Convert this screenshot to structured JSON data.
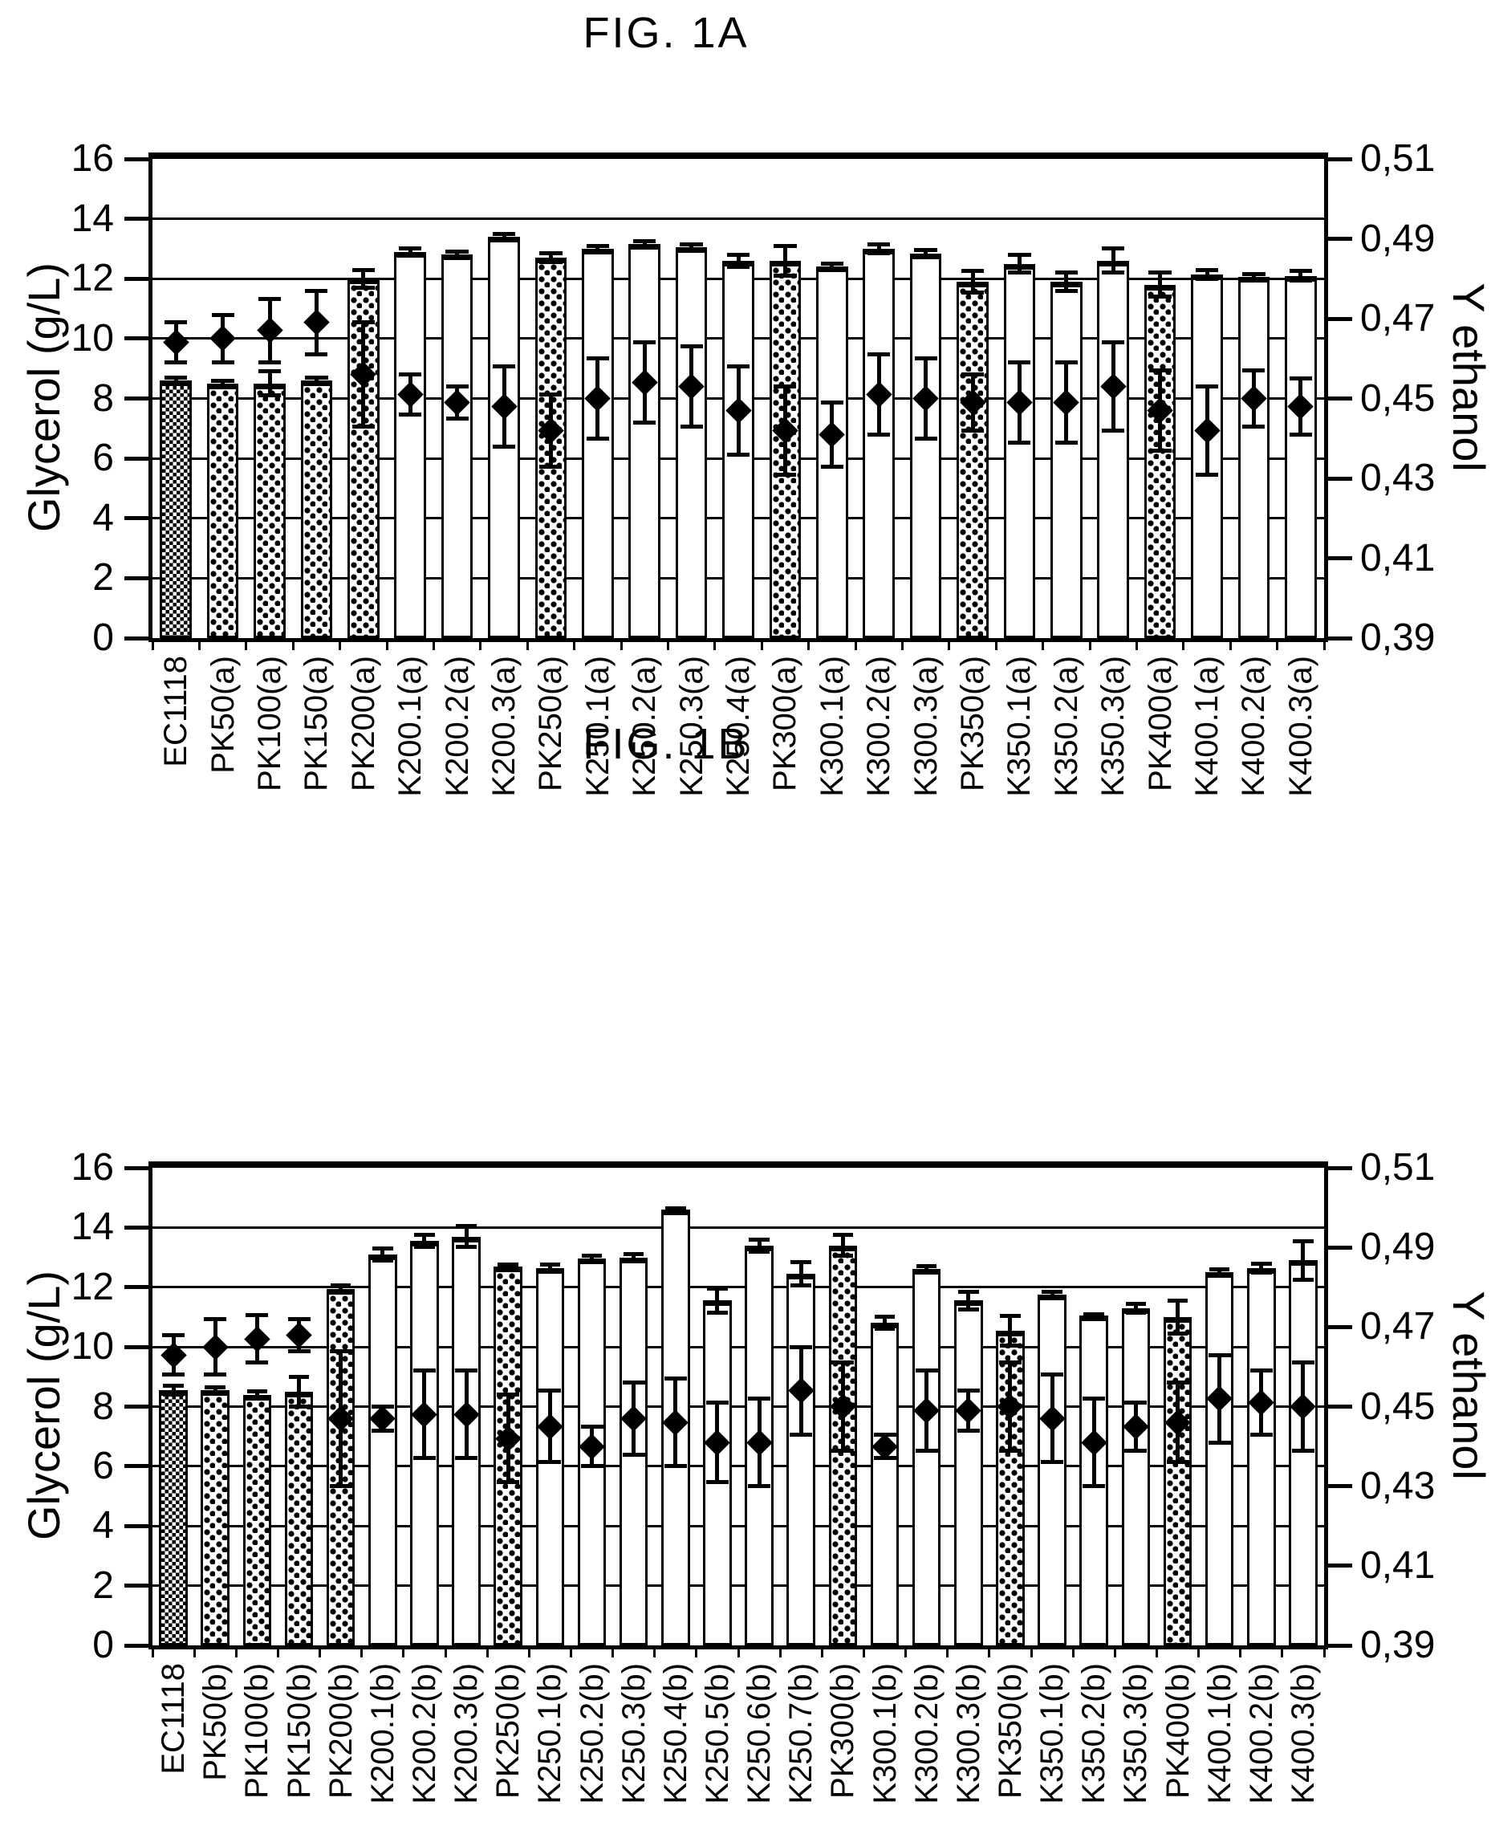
{
  "page": {
    "background": "#ffffff",
    "ink": "#000000"
  },
  "chart_data": [
    {
      "id": "fig1a",
      "type": "bar",
      "title": "FIG. 1A",
      "ylabel_left": "Glycerol (g/L)",
      "ylabel_right": "Y ethanol",
      "ylim_left": [
        0,
        16
      ],
      "ylim_right": [
        0.39,
        0.51
      ],
      "yticks_left": [
        16,
        14,
        12,
        10,
        8,
        6,
        4,
        2,
        0
      ],
      "yticks_right": [
        "0,51",
        "0,49",
        "0,47",
        "0,45",
        "0,43",
        "0,41",
        "0,39"
      ],
      "grid": "horizontal every 2 g/L",
      "legend": null,
      "series": [
        {
          "name": "Glycerol (g/L)",
          "marker": "bar",
          "axis": "left"
        },
        {
          "name": "Y ethanol",
          "marker": "diamond",
          "axis": "right"
        }
      ],
      "categories": [
        "EC1118",
        "PK50(a)",
        "PK100(a)",
        "PK150(a)",
        "PK200(a)",
        "K200.1(a)",
        "K200.2(a)",
        "K200.3(a)",
        "PK250(a)",
        "K250.1(a)",
        "K250.2(a)",
        "K250.3(a)",
        "K250.4(a)",
        "PK300(a)",
        "K300.1(a)",
        "K300.2(a)",
        "K300.3(a)",
        "PK350(a)",
        "K350.1(a)",
        "K350.2(a)",
        "K350.3(a)",
        "PK400(a)",
        "K400.1(a)",
        "K400.2(a)",
        "K400.3(a)"
      ],
      "bars": {
        "values": [
          8.6,
          8.5,
          8.5,
          8.6,
          12.0,
          12.9,
          12.8,
          13.4,
          12.7,
          13.0,
          13.15,
          13.05,
          12.6,
          12.6,
          12.4,
          13.0,
          12.85,
          11.9,
          12.5,
          11.9,
          12.6,
          11.8,
          12.15,
          12.05,
          12.1
        ],
        "errors": [
          0.1,
          0.1,
          0.4,
          0.1,
          0.3,
          0.1,
          0.1,
          0.1,
          0.15,
          0.1,
          0.1,
          0.1,
          0.2,
          0.5,
          0.1,
          0.15,
          0.1,
          0.35,
          0.3,
          0.3,
          0.4,
          0.4,
          0.15,
          0.1,
          0.15
        ],
        "patterns": [
          "checker",
          "dots",
          "dots",
          "dots",
          "dots",
          "plain",
          "plain",
          "plain",
          "dots",
          "plain",
          "plain",
          "plain",
          "plain",
          "dots",
          "plain",
          "plain",
          "plain",
          "dots",
          "plain",
          "plain",
          "plain",
          "dots",
          "plain",
          "plain",
          "plain"
        ]
      },
      "diamonds": {
        "values": [
          0.464,
          0.465,
          0.467,
          0.469,
          0.456,
          0.451,
          0.449,
          0.448,
          0.442,
          0.45,
          0.454,
          0.453,
          0.447,
          0.442,
          0.441,
          0.451,
          0.45,
          0.449,
          0.449,
          0.449,
          0.453,
          0.447,
          0.442,
          0.45,
          0.448
        ],
        "errors": [
          0.005,
          0.006,
          0.008,
          0.008,
          0.013,
          0.005,
          0.004,
          0.01,
          0.009,
          0.01,
          0.01,
          0.01,
          0.011,
          0.011,
          0.008,
          0.01,
          0.01,
          0.007,
          0.01,
          0.01,
          0.011,
          0.01,
          0.011,
          0.007,
          0.007
        ]
      }
    },
    {
      "id": "fig1b",
      "type": "bar",
      "title": "FIG. 1B",
      "ylabel_left": "Glycerol (g/L)",
      "ylabel_right": "Y ethanol",
      "ylim_left": [
        0,
        16
      ],
      "ylim_right": [
        0.39,
        0.51
      ],
      "yticks_left": [
        16,
        14,
        12,
        10,
        8,
        6,
        4,
        2,
        0
      ],
      "yticks_right": [
        "0,51",
        "0,49",
        "0,47",
        "0,45",
        "0,43",
        "0,41",
        "0,39"
      ],
      "grid": "horizontal every 2 g/L",
      "legend": null,
      "series": [
        {
          "name": "Glycerol (g/L)",
          "marker": "bar",
          "axis": "left"
        },
        {
          "name": "Y ethanol",
          "marker": "diamond",
          "axis": "right"
        }
      ],
      "categories": [
        "EC1118",
        "PK50(b)",
        "PK100(b)",
        "PK150(b)",
        "PK200(b)",
        "K200.1(b)",
        "K200.2(b)",
        "K200.3(b)",
        "PK250(b)",
        "K250.1(b)",
        "K250.2(b)",
        "K250.3(b)",
        "K250.4(b)",
        "K250.5(b)",
        "K250.6(b)",
        "K250.7(b)",
        "PK300(b)",
        "K300.1(b)",
        "K300.2(b)",
        "K300.3(b)",
        "PK350(b)",
        "K350.1(b)",
        "K350.2(b)",
        "K350.3(b)",
        "PK400(b)",
        "K400.1(b)",
        "K400.2(b)",
        "K400.3(b)"
      ],
      "bars": {
        "values": [
          8.55,
          8.55,
          8.4,
          8.5,
          11.95,
          13.1,
          13.55,
          13.7,
          12.7,
          12.65,
          12.95,
          13.0,
          14.6,
          11.55,
          13.4,
          12.45,
          13.4,
          10.8,
          12.6,
          11.55,
          10.55,
          11.75,
          11.05,
          11.3,
          11.0,
          12.5,
          12.65,
          12.9
        ],
        "errors": [
          0.15,
          0.1,
          0.1,
          0.5,
          0.1,
          0.2,
          0.2,
          0.35,
          0.05,
          0.1,
          0.1,
          0.1,
          0.05,
          0.4,
          0.2,
          0.4,
          0.35,
          0.2,
          0.1,
          0.3,
          0.5,
          0.1,
          0.05,
          0.15,
          0.55,
          0.1,
          0.15,
          0.65
        ],
        "patterns": [
          "checker",
          "dots",
          "dots",
          "dots",
          "dots",
          "plain",
          "plain",
          "plain",
          "dots",
          "plain",
          "plain",
          "plain",
          "plain",
          "plain",
          "plain",
          "plain",
          "dots",
          "plain",
          "plain",
          "plain",
          "dots",
          "plain",
          "plain",
          "plain",
          "dots",
          "plain",
          "plain",
          "plain"
        ]
      },
      "diamonds": {
        "values": [
          0.463,
          0.465,
          0.467,
          0.468,
          0.447,
          0.447,
          0.448,
          0.448,
          0.442,
          0.445,
          0.44,
          0.447,
          0.446,
          0.441,
          0.441,
          0.454,
          0.45,
          0.44,
          0.449,
          0.449,
          0.45,
          0.447,
          0.441,
          0.445,
          0.446,
          0.452,
          0.451,
          0.45
        ],
        "errors": [
          0.005,
          0.007,
          0.006,
          0.004,
          0.017,
          0.003,
          0.011,
          0.011,
          0.011,
          0.009,
          0.005,
          0.009,
          0.011,
          0.01,
          0.011,
          0.011,
          0.011,
          0.003,
          0.01,
          0.005,
          0.011,
          0.011,
          0.011,
          0.006,
          0.01,
          0.011,
          0.008,
          0.011
        ]
      }
    }
  ]
}
